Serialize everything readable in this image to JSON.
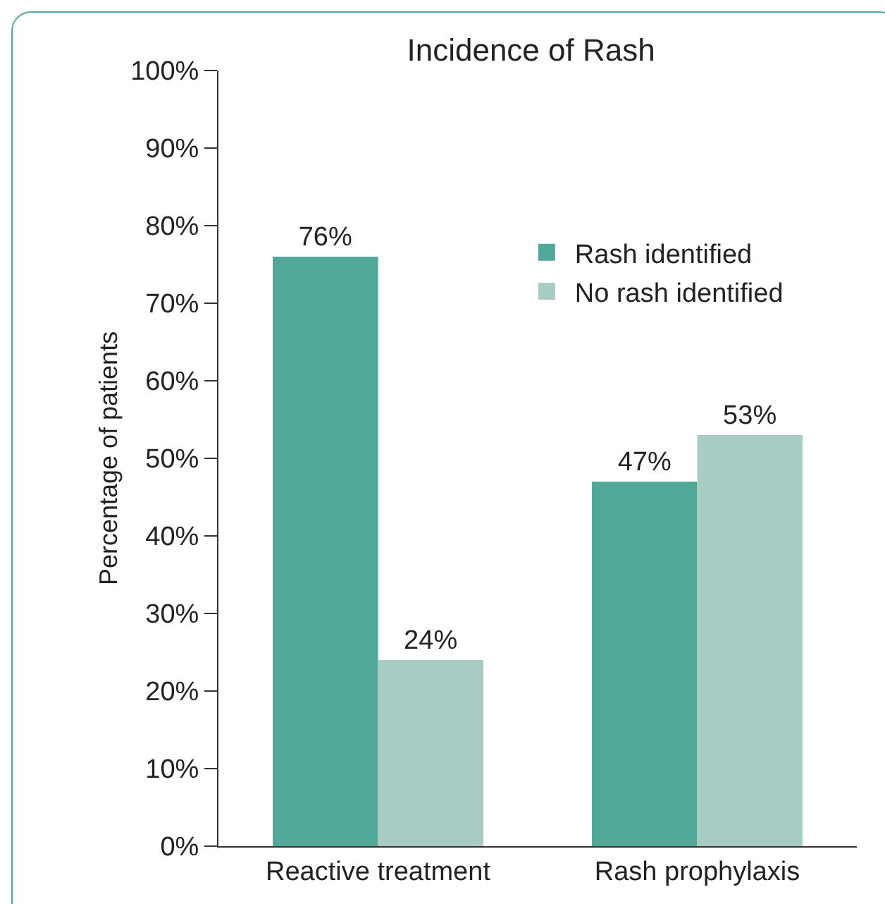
{
  "chart_data": {
    "type": "bar",
    "title": "Incidence of Rash",
    "ylabel": "Percentage of patients",
    "categories": [
      "Reactive treatment",
      "Rash prophylaxis"
    ],
    "series": [
      {
        "name": "Rash identified",
        "color": "#52a898",
        "values": [
          76,
          47
        ],
        "value_labels": [
          "76%",
          "47%"
        ]
      },
      {
        "name": "No rash identified",
        "color": "#a8cbc4",
        "values": [
          24,
          53
        ],
        "value_labels": [
          "24%",
          "53%"
        ]
      }
    ],
    "ylim": [
      0,
      100
    ],
    "yticks": [
      {
        "value": 0,
        "label": "0%"
      },
      {
        "value": 10,
        "label": "10%"
      },
      {
        "value": 20,
        "label": "20%"
      },
      {
        "value": 30,
        "label": "30%"
      },
      {
        "value": 40,
        "label": "40%"
      },
      {
        "value": 50,
        "label": "50%"
      },
      {
        "value": 60,
        "label": "60%"
      },
      {
        "value": 70,
        "label": "70%"
      },
      {
        "value": 80,
        "label": "80%"
      },
      {
        "value": 90,
        "label": "90%"
      },
      {
        "value": 100,
        "label": "100%"
      }
    ],
    "grid": false,
    "legend": "top right"
  }
}
